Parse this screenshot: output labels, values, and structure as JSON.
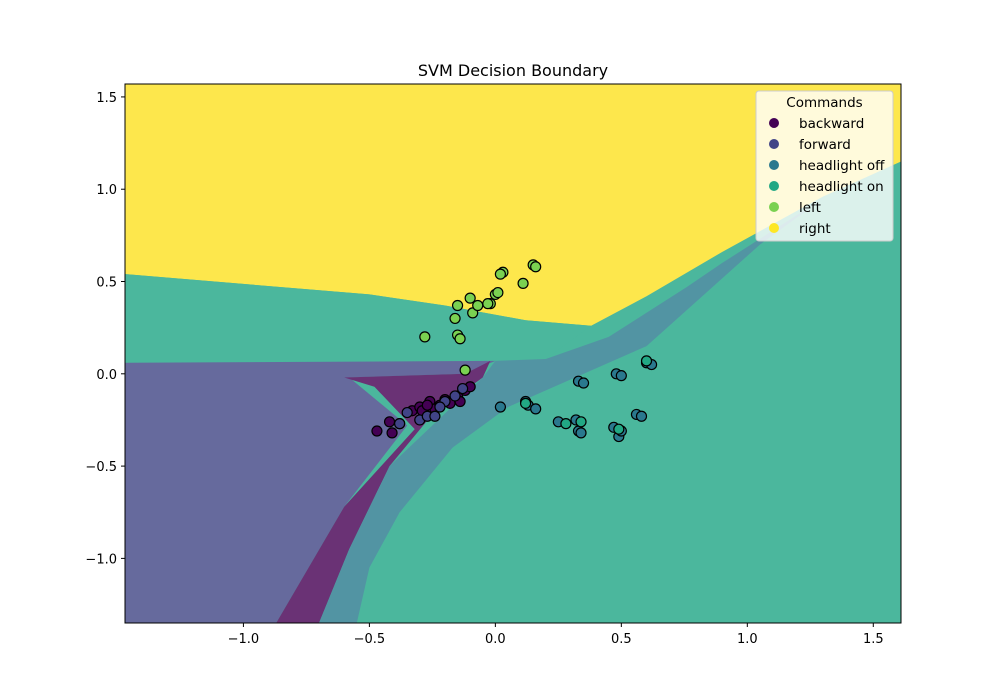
{
  "chart_data": {
    "type": "scatter",
    "title": "SVM Decision Boundary",
    "xlabel": "",
    "ylabel": "",
    "xlim": [
      -1.47,
      1.61
    ],
    "ylim": [
      -1.35,
      1.57
    ],
    "x_ticks": [
      -1.0,
      -0.5,
      0.0,
      0.5,
      1.0,
      1.5
    ],
    "x_tick_labels": [
      "−1.0",
      "−0.5",
      "0.0",
      "0.5",
      "1.0",
      "1.5"
    ],
    "y_ticks": [
      -1.0,
      -0.5,
      0.0,
      0.5,
      1.0,
      1.5
    ],
    "y_tick_labels": [
      "−1.0",
      "−0.5",
      "0.0",
      "0.5",
      "1.0",
      "1.5"
    ],
    "grid": false,
    "legend": {
      "title": "Commands",
      "placement": "top-right",
      "entries": [
        "backward",
        "forward",
        "headlight off",
        "headlight on",
        "left",
        "right"
      ]
    },
    "class_colors": {
      "backward": "#440154",
      "forward": "#414487",
      "headlight off": "#2a788e",
      "headlight on": "#22a884",
      "left": "#7ad151",
      "right": "#fde725"
    },
    "decision_regions": [
      {
        "class": "right",
        "polygon": [
          [
            -1.47,
            0.54
          ],
          [
            -0.5,
            0.43
          ],
          [
            -0.2,
            0.37
          ],
          [
            0.12,
            0.29
          ],
          [
            0.38,
            0.26
          ],
          [
            0.6,
            0.42
          ],
          [
            0.9,
            0.66
          ],
          [
            1.3,
            0.96
          ],
          [
            1.61,
            1.15
          ],
          [
            1.61,
            1.57
          ],
          [
            -1.47,
            1.57
          ]
        ]
      },
      {
        "class": "headlight on",
        "polygon": [
          [
            -1.47,
            0.06
          ],
          [
            0.0,
            0.07
          ],
          [
            0.2,
            0.08
          ],
          [
            0.38,
            0.26
          ],
          [
            0.12,
            0.29
          ],
          [
            -0.2,
            0.37
          ],
          [
            -0.5,
            0.43
          ],
          [
            -1.47,
            0.54
          ]
        ]
      },
      {
        "class": "forward",
        "polygon": [
          [
            -1.47,
            0.06
          ],
          [
            0.0,
            0.07
          ],
          [
            -0.12,
            0.0
          ],
          [
            -0.58,
            -0.02
          ],
          [
            -0.35,
            -0.28
          ],
          [
            -0.6,
            -0.72
          ],
          [
            -0.87,
            -1.35
          ],
          [
            -1.47,
            -1.35
          ]
        ]
      },
      {
        "class": "backward",
        "polygon": [
          [
            -0.6,
            -0.02
          ],
          [
            -0.12,
            0.0
          ],
          [
            -0.02,
            0.07
          ],
          [
            -0.05,
            -0.02
          ],
          [
            -0.25,
            -0.22
          ],
          [
            -0.42,
            -0.5
          ],
          [
            -0.58,
            -0.95
          ],
          [
            -0.7,
            -1.35
          ],
          [
            -0.87,
            -1.35
          ],
          [
            -0.6,
            -0.72
          ],
          [
            -0.32,
            -0.3
          ],
          [
            -0.48,
            -0.07
          ]
        ]
      },
      {
        "class": "headlight off",
        "polygon": [
          [
            0.2,
            0.08
          ],
          [
            0.45,
            0.2
          ],
          [
            0.76,
            0.47
          ],
          [
            0.9,
            0.6
          ],
          [
            1.3,
            0.95
          ],
          [
            1.05,
            0.7
          ],
          [
            0.6,
            0.15
          ],
          [
            0.05,
            -0.18
          ],
          [
            -0.17,
            -0.4
          ],
          [
            -0.38,
            -0.75
          ],
          [
            -0.5,
            -1.05
          ],
          [
            -0.55,
            -1.35
          ],
          [
            -0.7,
            -1.35
          ],
          [
            -0.58,
            -0.95
          ],
          [
            -0.42,
            -0.5
          ],
          [
            -0.15,
            -0.15
          ],
          [
            -0.05,
            -0.02
          ],
          [
            0.0,
            0.07
          ]
        ]
      }
    ],
    "series": [
      {
        "name": "backward",
        "x": [
          -0.47,
          -0.42,
          -0.41,
          -0.38,
          -0.33,
          -0.3,
          -0.28,
          -0.26,
          -0.24,
          -0.22,
          -0.2,
          -0.18,
          -0.15,
          -0.14,
          -0.12,
          -0.1,
          -0.29,
          -0.27
        ],
        "y": [
          -0.31,
          -0.26,
          -0.32,
          -0.27,
          -0.2,
          -0.18,
          -0.22,
          -0.15,
          -0.19,
          -0.17,
          -0.14,
          -0.16,
          -0.12,
          -0.15,
          -0.09,
          -0.07,
          -0.2,
          -0.17
        ]
      },
      {
        "name": "forward",
        "x": [
          -0.35,
          -0.3,
          -0.27,
          -0.24,
          -0.2,
          -0.16,
          -0.13,
          -0.38,
          -0.22
        ],
        "y": [
          -0.21,
          -0.25,
          -0.23,
          -0.23,
          -0.15,
          -0.12,
          -0.08,
          -0.27,
          -0.18
        ]
      },
      {
        "name": "headlight off",
        "x": [
          0.02,
          0.12,
          0.13,
          0.16,
          0.25,
          0.33,
          0.35,
          0.32,
          0.33,
          0.48,
          0.5,
          0.49,
          0.47,
          0.56,
          0.58,
          0.6,
          0.62,
          0.34,
          0.5
        ],
        "y": [
          -0.18,
          -0.15,
          -0.17,
          -0.19,
          -0.26,
          -0.04,
          -0.05,
          -0.25,
          -0.31,
          0.0,
          -0.01,
          -0.34,
          -0.29,
          -0.22,
          -0.23,
          0.06,
          0.05,
          -0.32,
          -0.31
        ]
      },
      {
        "name": "headlight on",
        "x": [
          0.28,
          0.34,
          0.49,
          0.12,
          0.6
        ],
        "y": [
          -0.27,
          -0.26,
          -0.3,
          -0.16,
          0.07
        ]
      },
      {
        "name": "left",
        "x": [
          -0.28,
          -0.15,
          -0.14,
          -0.16,
          -0.15,
          -0.12,
          -0.09,
          -0.1,
          -0.07,
          -0.02,
          0.0,
          0.03,
          0.02,
          0.11,
          0.15,
          0.16,
          0.01,
          -0.03
        ],
        "y": [
          0.2,
          0.21,
          0.19,
          0.3,
          0.37,
          0.02,
          0.33,
          0.41,
          0.37,
          0.38,
          0.43,
          0.55,
          0.54,
          0.49,
          0.59,
          0.58,
          0.44,
          0.38
        ]
      }
    ]
  }
}
